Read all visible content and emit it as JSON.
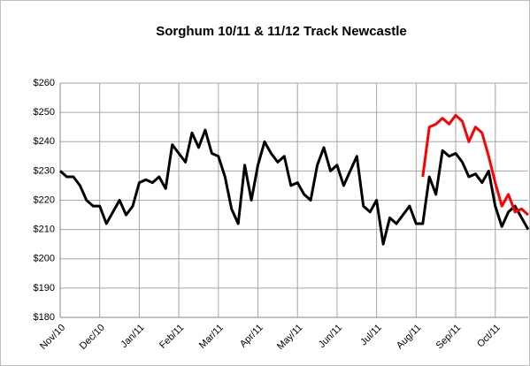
{
  "chart_data": {
    "type": "line",
    "title": "Sorghum 10/11 & 11/12 Track Newcastle",
    "categories": [
      "Nov/10",
      null,
      null,
      null,
      null,
      null,
      "Dec/10",
      null,
      null,
      null,
      null,
      null,
      "Jan/11",
      null,
      null,
      null,
      null,
      null,
      "Feb/11",
      null,
      null,
      null,
      null,
      null,
      "Mar/11",
      null,
      null,
      null,
      null,
      null,
      "Apr/11",
      null,
      null,
      null,
      null,
      null,
      "May/11",
      null,
      null,
      null,
      null,
      null,
      "Jun/11",
      null,
      null,
      null,
      null,
      null,
      "Jul/11",
      null,
      null,
      null,
      null,
      null,
      "Aug/11",
      null,
      null,
      null,
      null,
      null,
      "Sep/11",
      null,
      null,
      null,
      null,
      null,
      "Oct/11",
      null,
      null,
      null,
      null,
      null
    ],
    "series": [
      {
        "color": "#000000",
        "values": [
          230,
          228,
          228,
          225,
          220,
          218,
          218,
          212,
          216,
          220,
          215,
          218,
          226,
          227,
          226,
          228,
          224,
          239,
          236,
          233,
          243,
          238,
          244,
          236,
          235,
          228,
          217,
          212,
          232,
          220,
          232,
          240,
          236,
          233,
          235,
          225,
          226,
          222,
          220,
          232,
          238,
          230,
          232,
          225,
          230,
          235,
          218,
          216,
          220,
          205,
          214,
          212,
          215,
          218,
          212,
          212,
          228,
          222,
          237,
          235,
          236,
          233,
          228,
          229,
          226,
          230,
          218,
          211,
          216,
          218,
          214,
          210
        ]
      },
      {
        "color": "#ff0000",
        "values": [
          null,
          null,
          null,
          null,
          null,
          null,
          null,
          null,
          null,
          null,
          null,
          null,
          null,
          null,
          null,
          null,
          null,
          null,
          null,
          null,
          null,
          null,
          null,
          null,
          null,
          null,
          null,
          null,
          null,
          null,
          null,
          null,
          null,
          null,
          null,
          null,
          null,
          null,
          null,
          null,
          null,
          null,
          null,
          null,
          null,
          null,
          null,
          null,
          null,
          null,
          null,
          null,
          null,
          null,
          null,
          228,
          245,
          246,
          248,
          246,
          249,
          247,
          240,
          245,
          243,
          235,
          226,
          218,
          222,
          216,
          217,
          215
        ]
      }
    ],
    "ylim": [
      180,
      260
    ],
    "yticks": [
      {
        "value": 180,
        "label": "$180"
      },
      {
        "value": 190,
        "label": "$190"
      },
      {
        "value": 200,
        "label": "$200"
      },
      {
        "value": 210,
        "label": "$210"
      },
      {
        "value": 220,
        "label": "$220"
      },
      {
        "value": 230,
        "label": "$230"
      },
      {
        "value": 240,
        "label": "$240"
      },
      {
        "value": 250,
        "label": "$250"
      },
      {
        "value": 260,
        "label": "$260"
      }
    ],
    "grid": true
  }
}
